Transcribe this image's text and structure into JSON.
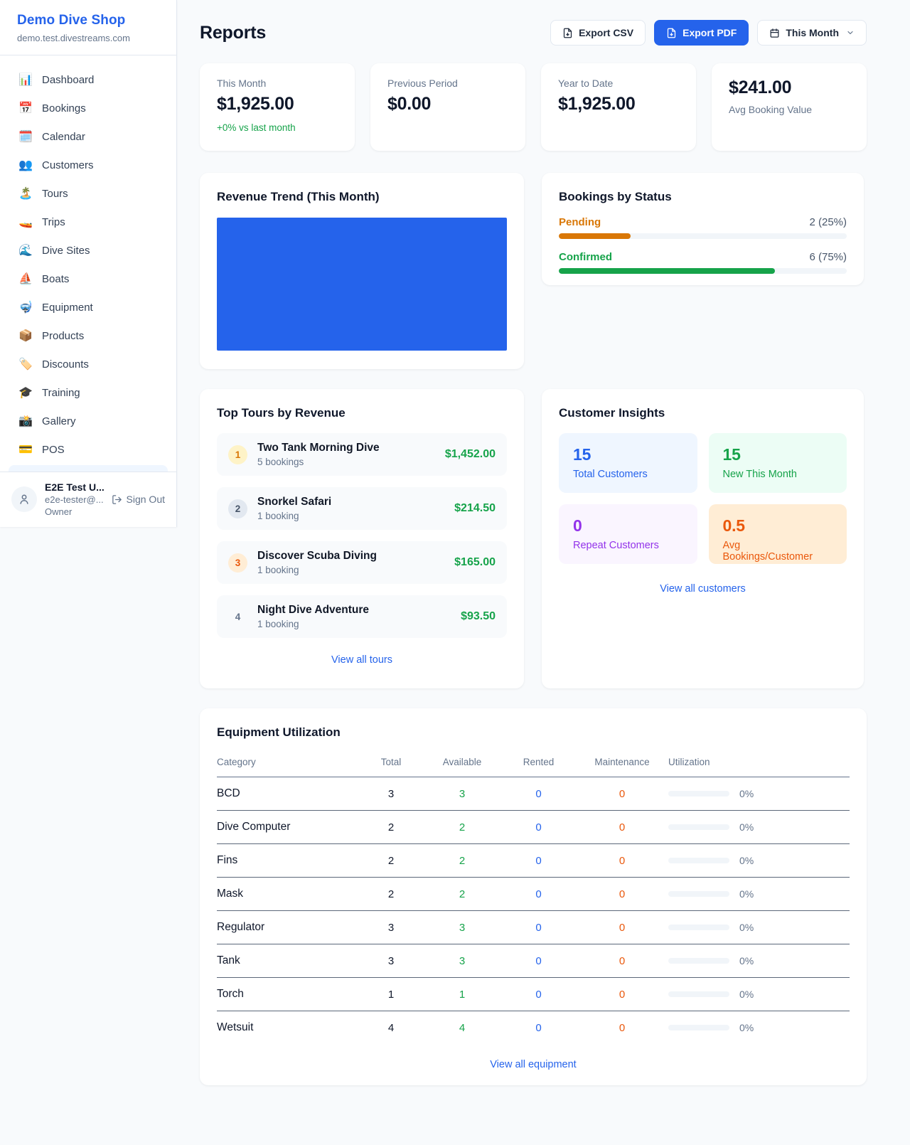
{
  "sidebar": {
    "shop_name": "Demo Dive Shop",
    "shop_domain": "demo.test.divestreams.com",
    "items": [
      {
        "icon": "📊",
        "icon_name": "dashboard-chart-icon",
        "label": "Dashboard"
      },
      {
        "icon": "📅",
        "icon_name": "bookings-calendar-icon",
        "label": "Bookings"
      },
      {
        "icon": "🗓️",
        "icon_name": "calendar-icon",
        "label": "Calendar"
      },
      {
        "icon": "👥",
        "icon_name": "customers-people-icon",
        "label": "Customers"
      },
      {
        "icon": "🏝️",
        "icon_name": "tours-island-icon",
        "label": "Tours"
      },
      {
        "icon": "🚤",
        "icon_name": "trips-boat-icon",
        "label": "Trips"
      },
      {
        "icon": "🌊",
        "icon_name": "dive-sites-wave-icon",
        "label": "Dive Sites"
      },
      {
        "icon": "⛵",
        "icon_name": "boats-sailboat-icon",
        "label": "Boats"
      },
      {
        "icon": "🤿",
        "icon_name": "equipment-mask-icon",
        "label": "Equipment"
      },
      {
        "icon": "📦",
        "icon_name": "products-package-icon",
        "label": "Products"
      },
      {
        "icon": "🏷️",
        "icon_name": "discounts-tag-icon",
        "label": "Discounts"
      },
      {
        "icon": "🎓",
        "icon_name": "training-grad-cap-icon",
        "label": "Training"
      },
      {
        "icon": "📸",
        "icon_name": "gallery-camera-icon",
        "label": "Gallery"
      },
      {
        "icon": "💳",
        "icon_name": "pos-credit-card-icon",
        "label": "POS"
      }
    ],
    "user": {
      "name": "E2E Test U...",
      "email": "e2e-tester@...",
      "role": "Owner",
      "sign_out_label": "Sign Out"
    }
  },
  "header": {
    "title": "Reports",
    "export_csv_label": "Export CSV",
    "export_pdf_label": "Export PDF",
    "period_label": "This Month"
  },
  "stats": [
    {
      "label": "This Month",
      "value": "$1,925.00",
      "delta": "+0% vs last month",
      "value_first": false
    },
    {
      "label": "Previous Period",
      "value": "$0.00",
      "delta": "",
      "value_first": false
    },
    {
      "label": "Year to Date",
      "value": "$1,925.00",
      "delta": "",
      "value_first": false
    },
    {
      "label": "Avg Booking Value",
      "value": "$241.00",
      "delta": "",
      "value_first": true
    }
  ],
  "revenue_trend": {
    "title": "Revenue Trend (This Month)",
    "chart_color": "#2563eb"
  },
  "bookings_by_status": {
    "title": "Bookings by Status",
    "items": [
      {
        "label": "Pending",
        "display": "2 (25%)",
        "count": 2,
        "percent": 25,
        "color": "#d97706"
      },
      {
        "label": "Confirmed",
        "display": "6 (75%)",
        "count": 6,
        "percent": 75,
        "color": "#16a34a"
      }
    ]
  },
  "top_tours": {
    "title": "Top Tours by Revenue",
    "items": [
      {
        "rank": "1",
        "name": "Two Tank Morning Dive",
        "bookings": "5 bookings",
        "revenue": "$1,452.00",
        "badge_bg": "#fef3c7",
        "badge_color": "#d97706"
      },
      {
        "rank": "2",
        "name": "Snorkel Safari",
        "bookings": "1 booking",
        "revenue": "$214.50",
        "badge_bg": "#e2e8f0",
        "badge_color": "#475569"
      },
      {
        "rank": "3",
        "name": "Discover Scuba Diving",
        "bookings": "1 booking",
        "revenue": "$165.00",
        "badge_bg": "#ffedd5",
        "badge_color": "#ea580c"
      },
      {
        "rank": "4",
        "name": "Night Dive Adventure",
        "bookings": "1 booking",
        "revenue": "$93.50",
        "badge_bg": "transparent",
        "badge_color": "#64748b"
      }
    ],
    "view_all": "View all tours"
  },
  "customer_insights": {
    "title": "Customer Insights",
    "tiles": [
      {
        "value": "15",
        "label": "Total Customers",
        "bg": "#eff6ff",
        "color": "#2563eb"
      },
      {
        "value": "15",
        "label": "New This Month",
        "bg": "#ecfdf5",
        "color": "#16a34a"
      },
      {
        "value": "0",
        "label": "Repeat Customers",
        "bg": "#faf5ff",
        "color": "#9333ea"
      },
      {
        "value": "0.5",
        "label": "Avg Bookings/Customer",
        "bg": "#ffedd5",
        "color": "#ea580c"
      }
    ],
    "view_all": "View all customers"
  },
  "equipment": {
    "title": "Equipment Utilization",
    "columns": [
      "Category",
      "Total",
      "Available",
      "Rented",
      "Maintenance",
      "Utilization"
    ],
    "rows": [
      {
        "category": "BCD",
        "total": "3",
        "available": "3",
        "rented": "0",
        "maintenance": "0",
        "utilization": "0%"
      },
      {
        "category": "Dive Computer",
        "total": "2",
        "available": "2",
        "rented": "0",
        "maintenance": "0",
        "utilization": "0%"
      },
      {
        "category": "Fins",
        "total": "2",
        "available": "2",
        "rented": "0",
        "maintenance": "0",
        "utilization": "0%"
      },
      {
        "category": "Mask",
        "total": "2",
        "available": "2",
        "rented": "0",
        "maintenance": "0",
        "utilization": "0%"
      },
      {
        "category": "Regulator",
        "total": "3",
        "available": "3",
        "rented": "0",
        "maintenance": "0",
        "utilization": "0%"
      },
      {
        "category": "Tank",
        "total": "3",
        "available": "3",
        "rented": "0",
        "maintenance": "0",
        "utilization": "0%"
      },
      {
        "category": "Torch",
        "total": "1",
        "available": "1",
        "rented": "0",
        "maintenance": "0",
        "utilization": "0%"
      },
      {
        "category": "Wetsuit",
        "total": "4",
        "available": "4",
        "rented": "0",
        "maintenance": "0",
        "utilization": "0%"
      }
    ],
    "view_all": "View all equipment"
  },
  "colors": {
    "accent_blue": "#2563eb",
    "green": "#16a34a",
    "orange": "#ea580c",
    "amber": "#d97706",
    "purple": "#9333ea"
  }
}
